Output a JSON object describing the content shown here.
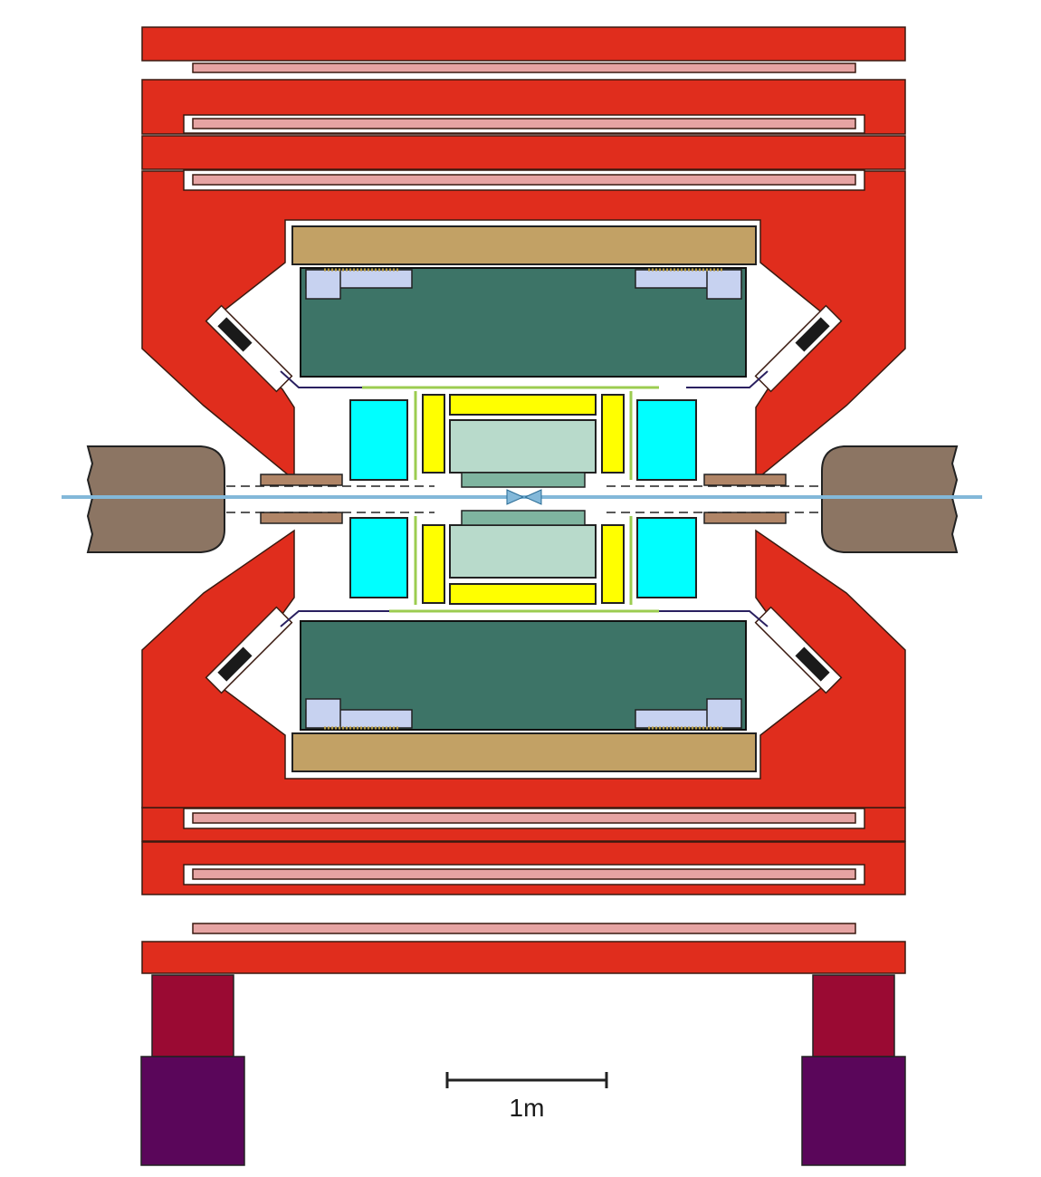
{
  "scale_bar": {
    "label": "1m"
  },
  "colors": {
    "yoke": "#e02d1d",
    "yoke_stroke": "#3a1a10",
    "muon_strip": "#e6a4a3",
    "coil_cryostat": "#c2a165",
    "calorimeter": "#3d7467",
    "calorimeter_module": "#c7d2f0",
    "forward_detector": "#00ffff",
    "tracker_yellow": "#ffff00",
    "vertex_detector": "#b8dacb",
    "gap_line": "#9ccc50",
    "final_focus_quad": "#8c7563",
    "mask": "#b08567",
    "beam": "#83b8d9",
    "support_upper": "#9a0a33",
    "support_lower": "#5a065a"
  }
}
